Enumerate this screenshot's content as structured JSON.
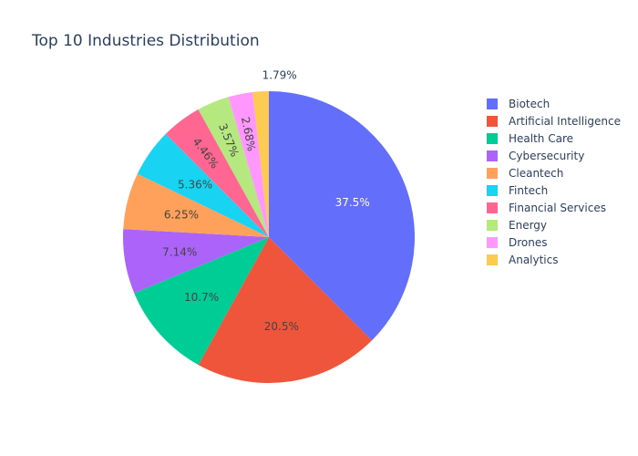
{
  "chart_data": {
    "type": "pie",
    "title": "Top 10 Industries Distribution",
    "legend_placement": "right",
    "slices": [
      {
        "label": "Biotech",
        "value": 37.5,
        "text": "37.5%",
        "color": "#636efa"
      },
      {
        "label": "Artificial Intelligence",
        "value": 20.5,
        "text": "20.5%",
        "color": "#ef553b"
      },
      {
        "label": "Health Care",
        "value": 10.7,
        "text": "10.7%",
        "color": "#00cc96"
      },
      {
        "label": "Cybersecurity",
        "value": 7.14,
        "text": "7.14%",
        "color": "#ab63fa"
      },
      {
        "label": "Cleantech",
        "value": 6.25,
        "text": "6.25%",
        "color": "#ffa15a"
      },
      {
        "label": "Fintech",
        "value": 5.36,
        "text": "5.36%",
        "color": "#19d3f3"
      },
      {
        "label": "Financial Services",
        "value": 4.46,
        "text": "4.46%",
        "color": "#ff6692"
      },
      {
        "label": "Energy",
        "value": 3.57,
        "text": "3.57%",
        "color": "#b6e880"
      },
      {
        "label": "Drones",
        "value": 2.68,
        "text": "2.68%",
        "color": "#ff97ff"
      },
      {
        "label": "Analytics",
        "value": 1.79,
        "text": "1.79%",
        "color": "#fecb52"
      }
    ]
  }
}
